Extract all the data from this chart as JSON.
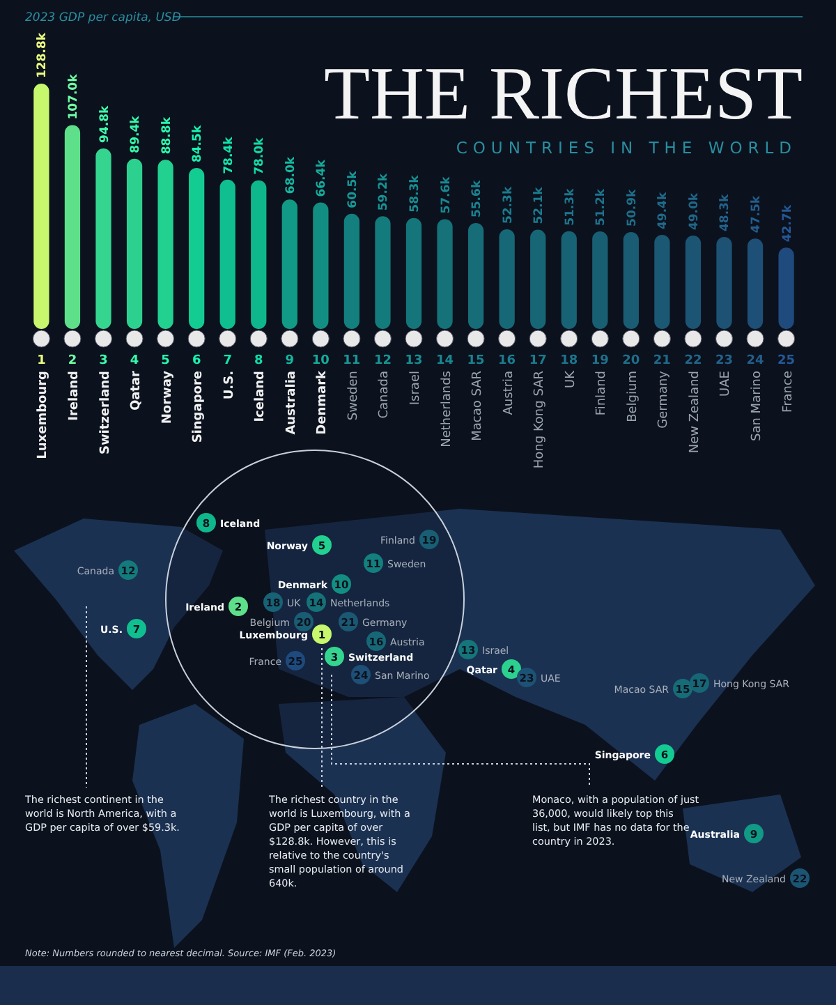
{
  "chart_data": {
    "type": "bar",
    "title": "THE RICHEST",
    "subtitle": "COUNTRIES IN THE WORLD",
    "ylabel": "2023 GDP per capita, USD",
    "categories": [
      "Luxembourg",
      "Ireland",
      "Switzerland",
      "Qatar",
      "Norway",
      "Singapore",
      "U.S.",
      "Iceland",
      "Australia",
      "Denmark",
      "Sweden",
      "Canada",
      "Israel",
      "Netherlands",
      "Macao SAR",
      "Austria",
      "Hong Kong SAR",
      "UK",
      "Finland",
      "Belgium",
      "Germany",
      "New Zealand",
      "UAE",
      "San Marino",
      "France"
    ],
    "values": [
      128.8,
      107.0,
      94.8,
      89.4,
      88.8,
      84.5,
      78.4,
      78.0,
      68.0,
      66.4,
      60.5,
      59.2,
      58.3,
      57.6,
      55.6,
      52.3,
      52.1,
      51.3,
      51.2,
      50.9,
      49.4,
      49.0,
      48.3,
      47.5,
      42.7
    ],
    "value_labels": [
      "128.8k",
      "107.0k",
      "94.8k",
      "89.4k",
      "88.8k",
      "84.5k",
      "78.4k",
      "78.0k",
      "68.0k",
      "66.4k",
      "60.5k",
      "59.2k",
      "58.3k",
      "57.6k",
      "55.6k",
      "52.3k",
      "52.1k",
      "51.3k",
      "51.2k",
      "50.9k",
      "49.4k",
      "49.0k",
      "48.3k",
      "47.5k",
      "42.7k"
    ],
    "colors": [
      "#c6f76d",
      "#5ee08a",
      "#35d590",
      "#2dd18f",
      "#22d090",
      "#13cc92",
      "#10bf8f",
      "#0fb78c",
      "#119a86",
      "#128f82",
      "#137f7e",
      "#137b7c",
      "#14767a",
      "#157279",
      "#166d78",
      "#176877",
      "#176676",
      "#186275",
      "#195f74",
      "#1a5c73",
      "#1b5873",
      "#1c5573",
      "#1d5274",
      "#1e4f76",
      "#1f4a7e"
    ],
    "annotations": [
      "1",
      "2",
      "3",
      "4",
      "5",
      "6",
      "7",
      "8",
      "9",
      "10",
      "11",
      "12",
      "13",
      "14",
      "15",
      "16",
      "17",
      "18",
      "19",
      "20",
      "21",
      "22",
      "23",
      "24",
      "25",
      "The richest continent in the world is North America, with a GDP per capita of over $59.3k.",
      "The richest country in the world is Luxembourg, with a GDP per capita of over $128.8k. However, this is relative to the country's small population of around 640k.",
      "Monaco, with a population of just 36,000, would likely top this list, but IMF has no data for the country in 2023.",
      "Note: Numbers rounded to nearest decimal. Source: IMF (Feb. 2023)"
    ]
  }
}
